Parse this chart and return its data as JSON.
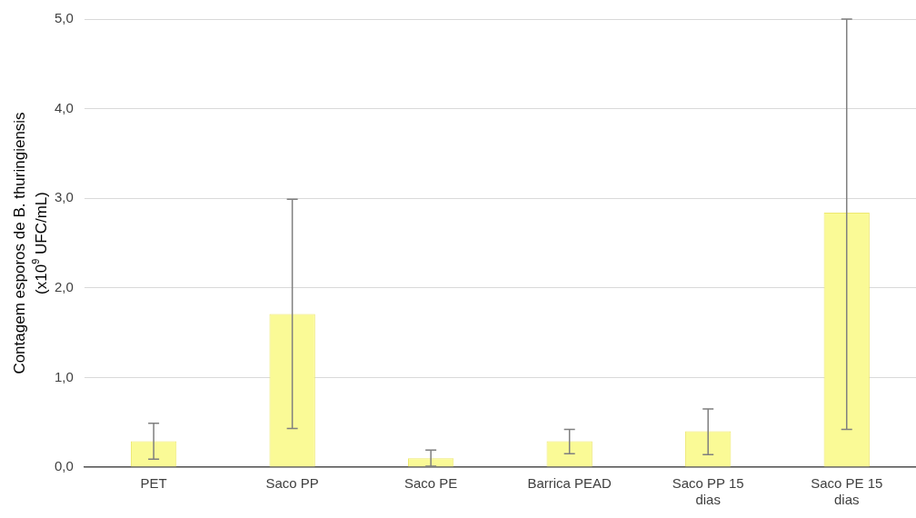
{
  "chart_data": {
    "type": "bar",
    "ylabel": "Contagem esporos de B. thuringiensis\n(x10$^{9}$ UFC/mL)",
    "categories": [
      "PET",
      "Saco PP",
      "Saco PE",
      "Barrica PEAD",
      "Saco PP 15 dias",
      "Saco PE 15 dias"
    ],
    "values": [
      0.29,
      1.71,
      0.1,
      0.29,
      0.4,
      2.84
    ],
    "errors": [
      [
        0.09,
        0.49
      ],
      [
        0.43,
        2.99
      ],
      [
        0.01,
        0.19
      ],
      [
        0.15,
        0.42
      ],
      [
        0.14,
        0.65
      ],
      [
        0.42,
        5.0
      ]
    ],
    "color": "#fafa96",
    "ylim": [
      0,
      5
    ],
    "yticks": [
      {
        "value": 0,
        "label": "0,0"
      },
      {
        "value": 1,
        "label": "1,0"
      },
      {
        "value": 2,
        "label": "2,0"
      },
      {
        "value": 3,
        "label": "3,0"
      },
      {
        "value": 4,
        "label": "4,0"
      },
      {
        "value": 5,
        "label": "5,0"
      }
    ],
    "grid": "y",
    "legend": false
  }
}
